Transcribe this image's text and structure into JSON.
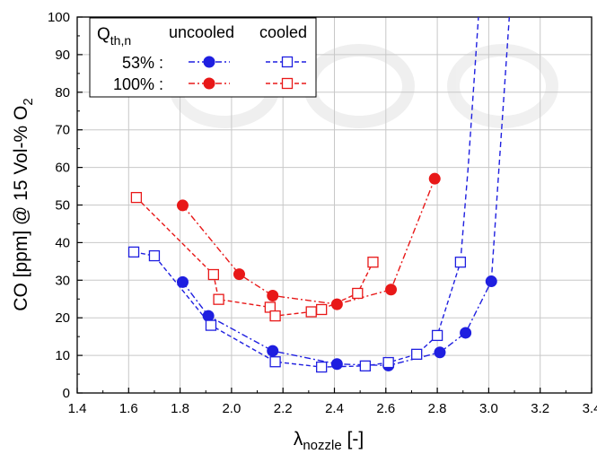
{
  "chart_data": {
    "type": "line",
    "xlabel_main": "λ",
    "xlabel_sub": "nozzle",
    "xlabel_unit": " [-]",
    "ylabel_main": "CO [ppm] @ 15 Vol-% O",
    "ylabel_sub": "2",
    "xlim": [
      1.4,
      3.4
    ],
    "ylim": [
      0,
      100
    ],
    "xticks": [
      "1.4",
      "1.6",
      "1.8",
      "2.0",
      "2.2",
      "2.4",
      "2.6",
      "2.8",
      "3.0",
      "3.2",
      "3.4"
    ],
    "yticks": [
      "0",
      "10",
      "20",
      "30",
      "40",
      "50",
      "60",
      "70",
      "80",
      "90",
      "100"
    ],
    "grid": true,
    "legend": {
      "placement": "top-left",
      "header_main": "Q",
      "header_sub": "th,n",
      "col_uncooled": "uncooled",
      "col_cooled": "cooled",
      "row_53": "53% :",
      "row_100": "100% :"
    },
    "colors": {
      "blue": "#1f1fe0",
      "red": "#e81818"
    },
    "series": [
      {
        "load": "53%",
        "mode": "uncooled",
        "color": "blue",
        "marker": "filled-circle",
        "points": [
          [
            1.81,
            29.5
          ],
          [
            1.91,
            20.5
          ],
          [
            2.16,
            11.2
          ],
          [
            2.41,
            7.7
          ],
          [
            2.61,
            7.3
          ],
          [
            2.81,
            10.8
          ],
          [
            2.91,
            16.0
          ],
          [
            3.01,
            29.7
          ]
        ]
      },
      {
        "load": "53%",
        "mode": "cooled",
        "color": "blue",
        "marker": "open-square",
        "points": [
          [
            1.62,
            37.5
          ],
          [
            1.7,
            36.5
          ],
          [
            1.92,
            18.0
          ],
          [
            2.17,
            8.3
          ],
          [
            2.35,
            6.9
          ],
          [
            2.52,
            7.2
          ],
          [
            2.61,
            8.1
          ],
          [
            2.72,
            10.3
          ],
          [
            2.8,
            15.3
          ],
          [
            2.89,
            34.8
          ]
        ]
      },
      {
        "load": "100%",
        "mode": "uncooled",
        "color": "red",
        "marker": "filled-circle",
        "points": [
          [
            1.81,
            49.9
          ],
          [
            2.03,
            31.6
          ],
          [
            2.16,
            25.9
          ],
          [
            2.41,
            23.6
          ],
          [
            2.62,
            27.5
          ],
          [
            2.79,
            57.0
          ]
        ]
      },
      {
        "load": "100%",
        "mode": "cooled",
        "color": "red",
        "marker": "open-square",
        "points": [
          [
            1.63,
            52.0
          ],
          [
            1.93,
            31.5
          ],
          [
            1.95,
            24.9
          ],
          [
            2.15,
            22.8
          ],
          [
            2.17,
            20.5
          ],
          [
            2.31,
            21.6
          ],
          [
            2.35,
            22.2
          ],
          [
            2.49,
            26.5
          ],
          [
            2.55,
            34.8
          ]
        ]
      }
    ],
    "extensions": [
      {
        "of": "53% uncooled",
        "color": "blue",
        "points": [
          [
            3.01,
            29.7
          ],
          [
            3.04,
            60
          ],
          [
            3.07,
            90
          ],
          [
            3.08,
            100
          ]
        ]
      },
      {
        "of": "53% cooled",
        "color": "blue",
        "points": [
          [
            2.89,
            34.8
          ],
          [
            2.92,
            60
          ],
          [
            2.95,
            90
          ],
          [
            2.96,
            100
          ]
        ]
      }
    ]
  }
}
